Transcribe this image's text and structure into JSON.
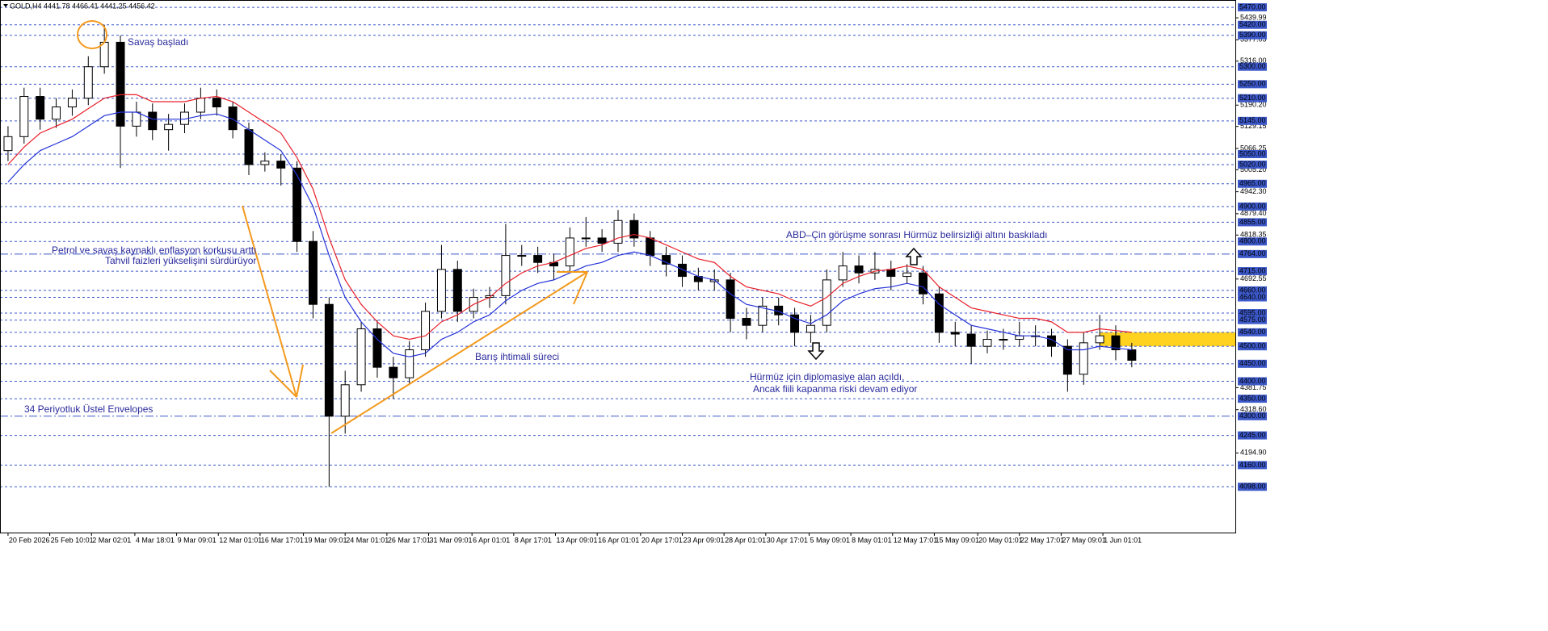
{
  "chart_data": {
    "type": "candlestick",
    "header": {
      "symbol": "GOLD,H4",
      "ohlc": "4441.78 4466.41 4441.25 4456.42"
    },
    "annotations": {
      "war": "Savaş başladı",
      "inflation_1": "Petrol ve savaş kaynaklı enflasyon korkusu arttı",
      "inflation_2": "Tahvil faizleri yükselişini sürdürüyor",
      "peace": "Barış ihtimali süreci",
      "talks": "ABD–Çin görüşme sonrası Hürmüz belirsizliği altını baskıladı",
      "diplomacy_1": "Hürmüz için diplomasiye alan açıldı,",
      "diplomacy_2": "Ancak fiili kapanma riski devam ediyor",
      "envelopes": "34 Periyotluk Üstel Envelopes"
    },
    "candles": {
      "open": [
        5060,
        5100,
        5215,
        5150,
        5185,
        5210,
        5300,
        5370,
        5130,
        5170,
        5120,
        5135,
        5170,
        5210,
        5185,
        5120,
        5020,
        5030,
        5010,
        4800,
        4620,
        4300,
        4390,
        4550,
        4440,
        4410,
        4490,
        4600,
        4720,
        4600,
        4640,
        4645,
        4760,
        4760,
        4740,
        4730,
        4810,
        4810,
        4795,
        4860,
        4810,
        4760,
        4735,
        4700,
        4685,
        4690,
        4580,
        4560,
        4615,
        4590,
        4540,
        4560,
        4690,
        4730,
        4710,
        4720,
        4700,
        4710,
        4650,
        4540,
        4535,
        4500,
        4520,
        4520,
        4530,
        4530,
        4500,
        4420,
        4510,
        4530,
        4490
      ],
      "high": [
        5130,
        5240,
        5240,
        5210,
        5235,
        5330,
        5420,
        5390,
        5200,
        5195,
        5165,
        5195,
        5240,
        5235,
        5200,
        5140,
        5055,
        5050,
        5030,
        4830,
        4640,
        4430,
        4570,
        4575,
        4470,
        4515,
        4625,
        4790,
        4745,
        4665,
        4670,
        4850,
        4790,
        4785,
        4765,
        4840,
        4870,
        4835,
        4890,
        4880,
        4830,
        4785,
        4760,
        4725,
        4720,
        4710,
        4610,
        4640,
        4640,
        4610,
        4590,
        4720,
        4770,
        4760,
        4770,
        4745,
        4735,
        4730,
        4670,
        4570,
        4560,
        4545,
        4550,
        4570,
        4560,
        4550,
        4520,
        4540,
        4590,
        4560,
        4510
      ],
      "low": [
        5030,
        5080,
        5120,
        5125,
        5160,
        5190,
        5280,
        5010,
        5100,
        5090,
        5060,
        5110,
        5150,
        5160,
        5095,
        4990,
        5000,
        4960,
        4770,
        4580,
        4098,
        4250,
        4370,
        4410,
        4350,
        4390,
        4470,
        4580,
        4570,
        4580,
        4610,
        4620,
        4730,
        4710,
        4690,
        4710,
        4785,
        4770,
        4770,
        4785,
        4730,
        4700,
        4670,
        4660,
        4660,
        4540,
        4520,
        4540,
        4560,
        4500,
        4510,
        4540,
        4670,
        4680,
        4690,
        4660,
        4680,
        4620,
        4510,
        4500,
        4450,
        4480,
        4490,
        4500,
        4500,
        4470,
        4370,
        4390,
        4490,
        4460,
        4440
      ],
      "close": [
        5100,
        5215,
        5150,
        5185,
        5210,
        5300,
        5370,
        5130,
        5170,
        5120,
        5135,
        5170,
        5210,
        5185,
        5120,
        5020,
        5030,
        5010,
        4800,
        4620,
        4300,
        4390,
        4550,
        4440,
        4410,
        4490,
        4600,
        4720,
        4600,
        4640,
        4645,
        4760,
        4760,
        4740,
        4730,
        4810,
        4810,
        4795,
        4860,
        4810,
        4760,
        4735,
        4700,
        4685,
        4690,
        4580,
        4560,
        4615,
        4590,
        4540,
        4560,
        4690,
        4730,
        4710,
        4720,
        4700,
        4710,
        4650,
        4540,
        4535,
        4500,
        4520,
        4520,
        4530,
        4530,
        4500,
        4420,
        4510,
        4530,
        4490,
        4460
      ]
    },
    "series": [
      {
        "color": "#e8202a",
        "values": [
          5020,
          5070,
          5110,
          5130,
          5150,
          5180,
          5210,
          5220,
          5220,
          5200,
          5200,
          5200,
          5210,
          5215,
          5200,
          5170,
          5140,
          5110,
          5040,
          4950,
          4810,
          4690,
          4620,
          4570,
          4530,
          4520,
          4530,
          4570,
          4590,
          4620,
          4640,
          4680,
          4710,
          4730,
          4740,
          4760,
          4780,
          4790,
          4810,
          4820,
          4810,
          4790,
          4770,
          4750,
          4740,
          4700,
          4670,
          4660,
          4650,
          4630,
          4615,
          4640,
          4680,
          4700,
          4715,
          4720,
          4730,
          4720,
          4670,
          4640,
          4610,
          4600,
          4590,
          4580,
          4580,
          4570,
          4540,
          4540,
          4550,
          4545,
          4540
        ]
      },
      {
        "color": "#2432d8",
        "values": [
          4970,
          5020,
          5060,
          5080,
          5100,
          5130,
          5160,
          5170,
          5170,
          5150,
          5150,
          5150,
          5160,
          5165,
          5150,
          5120,
          5090,
          5060,
          4990,
          4900,
          4760,
          4640,
          4570,
          4520,
          4480,
          4470,
          4480,
          4520,
          4540,
          4570,
          4590,
          4630,
          4660,
          4680,
          4690,
          4710,
          4730,
          4740,
          4760,
          4770,
          4760,
          4740,
          4720,
          4700,
          4690,
          4650,
          4620,
          4610,
          4600,
          4580,
          4565,
          4590,
          4630,
          4650,
          4665,
          4670,
          4680,
          4670,
          4620,
          4590,
          4560,
          4550,
          4540,
          4530,
          4530,
          4520,
          4490,
          4490,
          4500,
          4495,
          4490
        ]
      }
    ],
    "levels": [
      {
        "value": 5470,
        "label": "5470.00"
      },
      {
        "value": 5420,
        "label": "5420.00"
      },
      {
        "value": 5390,
        "label": "5390.00"
      },
      {
        "value": 5300,
        "label": "5300.00"
      },
      {
        "value": 5250,
        "label": "5250.00"
      },
      {
        "value": 5210,
        "label": "5210.00"
      },
      {
        "value": 5145,
        "label": "5145.00"
      },
      {
        "value": 5050,
        "label": "5050.00"
      },
      {
        "value": 5020,
        "label": "5020.00"
      },
      {
        "value": 4965,
        "label": "4965.00"
      },
      {
        "value": 4900,
        "label": "4900.00"
      },
      {
        "value": 4855,
        "label": "4855.00"
      },
      {
        "value": 4800,
        "label": "4800.00"
      },
      {
        "value": 4764,
        "label": "4764.00"
      },
      {
        "value": 4715,
        "label": "4715.00"
      },
      {
        "value": 4660,
        "label": "4660.00"
      },
      {
        "value": 4640,
        "label": "4640.00"
      },
      {
        "value": 4595,
        "label": "4595.00"
      },
      {
        "value": 4575,
        "label": "4575.00"
      },
      {
        "value": 4540,
        "label": "4540.00"
      },
      {
        "value": 4500,
        "label": "4500.00"
      },
      {
        "value": 4450,
        "label": "4450.00"
      },
      {
        "value": 4400,
        "label": "4400.00"
      },
      {
        "value": 4350,
        "label": "4350.00"
      },
      {
        "value": 4300,
        "label": "4300.00"
      },
      {
        "value": 4245,
        "label": "4245.00"
      },
      {
        "value": 4160,
        "label": "4160.00"
      },
      {
        "value": 4098,
        "label": "4098.00"
      }
    ],
    "dash_dot_levels": [
      4764,
      4300
    ],
    "zone": {
      "start": 68,
      "low": 4500,
      "high": 4540,
      "color": "#ffd21f"
    },
    "ylim": [
      3967,
      5491
    ],
    "yticks": [
      5439.99,
      5377.05,
      {
        "value": 5316,
        "label": "5316.00"
      },
      {
        "value": 5190.2,
        "label": "5190.20"
      },
      5129.15,
      5066.25,
      {
        "value": 5005.2,
        "label": "5005.20"
      },
      {
        "value": 4942.3,
        "label": "4942.30"
      },
      {
        "value": 4879.4,
        "label": "4879.40"
      },
      4818.35,
      4692.55,
      4381.75,
      {
        "value": 4318.6,
        "label": "4318.60"
      },
      {
        "value": 4194.9,
        "label": "4194.90"
      }
    ],
    "xlim": [
      -0.5,
      76.5
    ],
    "xticks": [
      {
        "value": 0,
        "label": "20 Feb 2026"
      },
      {
        "value": 2.6,
        "label": "25 Feb 10:01"
      },
      {
        "value": 5.2,
        "label": "2 Mar 02:01"
      },
      {
        "value": 7.9,
        "label": "4 Mar 18:01"
      },
      {
        "value": 10.5,
        "label": "9 Mar 09:01"
      },
      {
        "value": 13.1,
        "label": "12 Mar 01:01"
      },
      {
        "value": 15.7,
        "label": "16 Mar 17:01"
      },
      {
        "value": 18.4,
        "label": "19 Mar 09:01"
      },
      {
        "value": 21,
        "label": "24 Mar 01:01"
      },
      {
        "value": 23.6,
        "label": "26 Mar 17:01"
      },
      {
        "value": 26.2,
        "label": "31 Mar 09:01"
      },
      {
        "value": 28.9,
        "label": "6 Apr 01:01"
      },
      {
        "value": 31.5,
        "label": "8 Apr 17:01"
      },
      {
        "value": 34.1,
        "label": "13 Apr 09:01"
      },
      {
        "value": 36.7,
        "label": "16 Apr 01:01"
      },
      {
        "value": 39.4,
        "label": "20 Apr 17:01"
      },
      {
        "value": 42,
        "label": "23 Apr 09:01"
      },
      {
        "value": 44.6,
        "label": "28 Apr 01:01"
      },
      {
        "value": 47.2,
        "label": "30 Apr 17:01"
      },
      {
        "value": 49.9,
        "label": "5 May 09:01"
      },
      {
        "value": 52.5,
        "label": "8 May 01:01"
      },
      {
        "value": 55.1,
        "label": "12 May 17:01"
      },
      {
        "value": 57.7,
        "label": "15 May 09:01"
      },
      {
        "value": 60.4,
        "label": "20 May 01:01"
      },
      {
        "value": 63,
        "label": "22 May 17:01"
      },
      {
        "value": 65.6,
        "label": "27 May 09:01"
      },
      {
        "value": 68.2,
        "label": "1 Jun 01:01"
      }
    ],
    "level_color": "#3c58c8",
    "candle_color": "#000000"
  }
}
